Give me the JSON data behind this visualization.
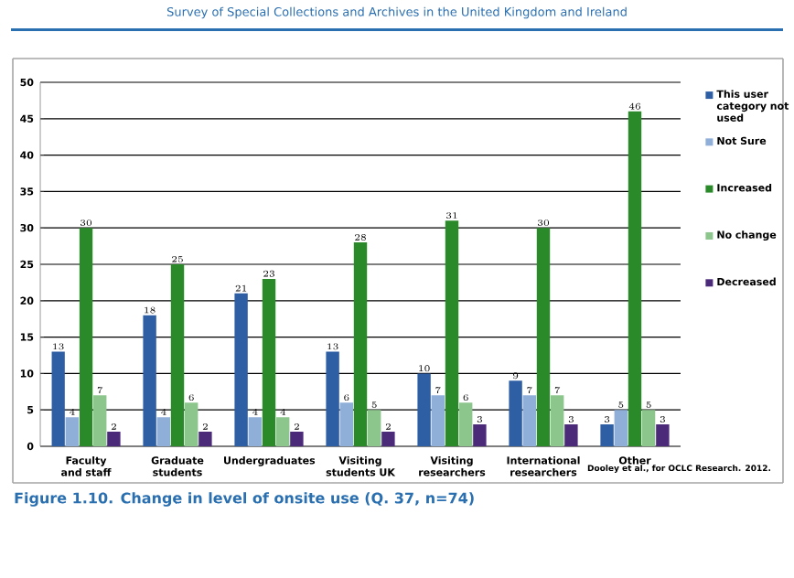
{
  "chart_data": {
    "type": "bar",
    "title": "Figure 1.10. Change in level of onsite use (Q. 37, n=74)",
    "subtitle": "Survey of Special Collections and Archives in the United Kingdom and Ireland",
    "categories": [
      "Faculty and staff",
      "Graduate students",
      "Undergraduates",
      "Visiting students UK",
      "Visiting researchers",
      "International researchers",
      "Other"
    ],
    "series": [
      {
        "name": "This user category not used",
        "color": "#2e5fa5",
        "values": [
          13,
          18,
          21,
          13,
          10,
          9,
          3
        ]
      },
      {
        "name": "Not Sure",
        "color": "#8faed8",
        "values": [
          4,
          4,
          4,
          6,
          7,
          7,
          5
        ]
      },
      {
        "name": "Increased",
        "color": "#2a8a2a",
        "values": [
          30,
          25,
          23,
          28,
          31,
          30,
          46
        ]
      },
      {
        "name": "No change",
        "color": "#8cc68c",
        "values": [
          7,
          6,
          4,
          5,
          6,
          7,
          5
        ]
      },
      {
        "name": "Decreased",
        "color": "#4b2a7a",
        "values": [
          2,
          2,
          2,
          2,
          3,
          3,
          3
        ]
      }
    ],
    "ylim": [
      0,
      50
    ],
    "yticks": [
      0,
      5,
      10,
      15,
      20,
      25,
      30,
      35,
      40,
      45,
      50
    ],
    "grid": "y",
    "legend": "right",
    "data_labels": true,
    "annotations": [
      "Dooley et al., for OCLC Research. 2012."
    ]
  }
}
